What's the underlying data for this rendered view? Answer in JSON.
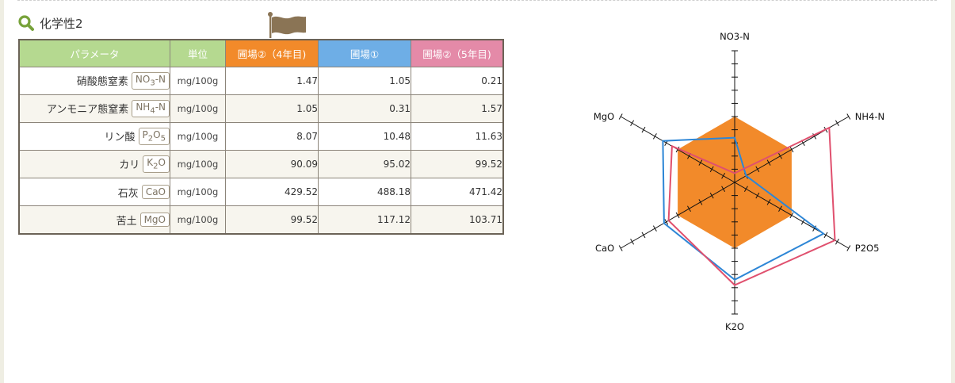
{
  "section": {
    "title": "化学性2"
  },
  "table": {
    "headers": [
      "パラメータ",
      "単位",
      "圃場②（4年目)",
      "圃場①",
      "圃場②（5年目)"
    ],
    "rows": [
      {
        "name": "硝酸態窒素",
        "symbol_base": "NO",
        "symbol_sub": "3",
        "symbol_tail": "-N",
        "unit": "mg/100g",
        "values": [
          "1.47",
          "1.05",
          "0.21"
        ]
      },
      {
        "name": "アンモニア態窒素",
        "symbol_base": "NH",
        "symbol_sub": "4",
        "symbol_tail": "-N",
        "unit": "mg/100g",
        "values": [
          "1.05",
          "0.31",
          "1.57"
        ]
      },
      {
        "name": "リン酸",
        "symbol_base": "P",
        "symbol_sub": "2",
        "symbol_tail": "O",
        "symbol_sub2": "5",
        "unit": "mg/100g",
        "values": [
          "8.07",
          "10.48",
          "11.63"
        ]
      },
      {
        "name": "カリ",
        "symbol_base": "K",
        "symbol_sub": "2",
        "symbol_tail": "O",
        "unit": "mg/100g",
        "values": [
          "90.09",
          "95.02",
          "99.52"
        ]
      },
      {
        "name": "石灰",
        "symbol_base": "CaO",
        "unit": "mg/100g",
        "values": [
          "429.52",
          "488.18",
          "471.42"
        ]
      },
      {
        "name": "苦土",
        "symbol_base": "MgO",
        "unit": "mg/100g",
        "values": [
          "99.52",
          "117.12",
          "103.71"
        ]
      }
    ]
  },
  "chart_data": {
    "type": "radar",
    "axes": [
      "NO3-N",
      "NH4-N",
      "P2O5",
      "K2O",
      "CaO",
      "MgO"
    ],
    "scale": {
      "min": 0,
      "max": 1,
      "ticks": 10
    },
    "series": [
      {
        "values": [
          0.5,
          0.5,
          0.5,
          0.5,
          0.5,
          0.5
        ],
        "color": "#f28a2a",
        "style": "filled"
      },
      {
        "values": [
          0.34,
          0.1,
          0.78,
          0.74,
          0.62,
          0.63
        ],
        "color": "#2d86d6",
        "style": "line"
      },
      {
        "values": [
          0.07,
          0.83,
          0.88,
          0.78,
          0.58,
          0.55
        ],
        "color": "#e0506e",
        "style": "line"
      }
    ]
  }
}
